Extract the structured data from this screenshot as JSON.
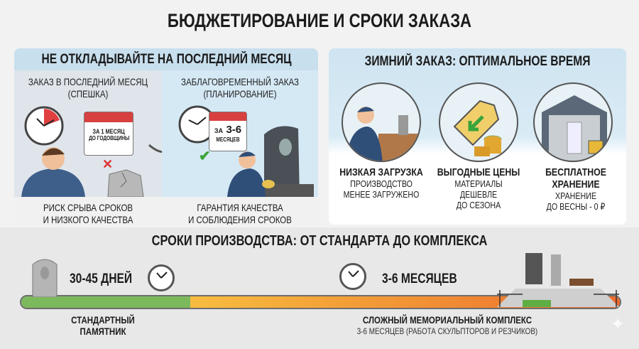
{
  "title": "БЮДЖЕТИРОВАНИЕ И СРОКИ ЗАКАЗА",
  "left_panel": {
    "heading": "НЕ ОТКЛАДЫВАЙТЕ НА ПОСЛЕДНИЙ МЕСЯЦ",
    "rush": {
      "caption_line1": "ЗАКАЗ В ПОСЛЕДНИЙ МЕСЯЦ",
      "caption_line2": "(СПЕШКА)",
      "calendar_line1": "ЗА 1 МЕСЯЦ",
      "calendar_line2": "ДО ГОДОВЩИНЫ",
      "result_line1": "РИСК СРЫВА СРОКОВ",
      "result_line2": "И НИЗКОГО КАЧЕСТВА"
    },
    "planned": {
      "caption_line1": "ЗАБЛАГОВРЕМЕННЫЙ ЗАКАЗ",
      "caption_line2": "(ПЛАНИРОВАНИЕ)",
      "calendar_prefix": "ЗА",
      "calendar_value": "3-6",
      "calendar_line2": "МЕСЯЦЕВ",
      "result_line1": "ГАРАНТИЯ КАЧЕСТВА",
      "result_line2": "И СОБЛЮДЕНИЯ СРОКОВ"
    }
  },
  "right_panel": {
    "heading": "ЗИМНИЙ ЗАКАЗ: ОПТИМАЛЬНОЕ ВРЕМЯ",
    "features": [
      {
        "icon": "worker-icon",
        "title_line1": "НИЗКАЯ ЗАГРУЗКА",
        "title_line2": "",
        "lines": [
          "ПРОИЗВОДСТВО",
          "МЕНЕЕ ЗАГРУЖЕНО",
          ""
        ]
      },
      {
        "icon": "price-tag-icon",
        "title_line1": "ВЫГОДНЫЕ ЦЕНЫ",
        "title_line2": "",
        "lines": [
          "МАТЕРИАЛЫ",
          "ДЕШЕВЛЕ",
          "ДО СЕЗОНА"
        ]
      },
      {
        "icon": "storage-icon",
        "title_line1": "БЕСПЛАТНОЕ",
        "title_line2": "ХРАНЕНИЕ",
        "lines": [
          "ХРАНЕНИЕ",
          "ДО ВЕСНЫ - 0 ₽",
          ""
        ]
      }
    ]
  },
  "timeline": {
    "heading": "СРОКИ ПРОИЗВОДСТВА: ОТ СТАНДАРТА ДО КОМПЛЕКСА",
    "standard": {
      "duration": "30-45 ДНЕЙ",
      "label_line1": "СТАНДАРТНЫЙ",
      "label_line2": "ПАМЯТНИК"
    },
    "complex": {
      "duration": "3-6 МЕСЯЦЕВ",
      "label": "СЛОЖНЫЙ МЕМОРИАЛЬНЫЙ КОМПЛЕКС",
      "sublabel": "3-6 МЕСЯЦЕВ (РАБОТА СКУЛЬПТОРОВ И РЕЗЧИКОВ)"
    },
    "colors": {
      "standard": "#7cb95c",
      "complex_start": "#f7bd3f",
      "complex_end": "#ec6a2c"
    }
  }
}
